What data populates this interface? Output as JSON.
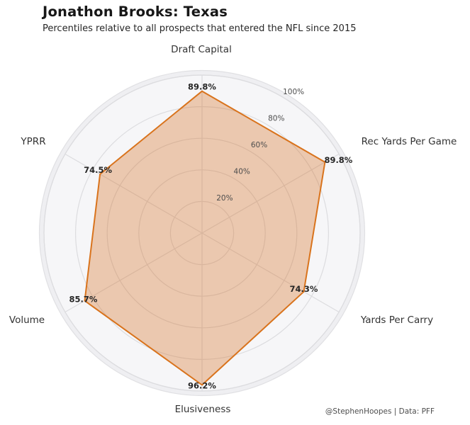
{
  "header": {
    "title": "Jonathon Brooks: Texas",
    "subtitle": "Percentiles relative to all prospects that entered the NFL since 2015"
  },
  "footer": {
    "credit": "@StephenHoopes | Data: PFF"
  },
  "chart_data": {
    "type": "radar",
    "title": "Jonathon Brooks: Texas",
    "subtitle": "Percentiles relative to all prospects that entered the NFL since 2015",
    "categories": [
      "Draft Capital",
      "Rec Yards Per Game",
      "Yards Per Carry",
      "Elusiveness",
      "Volume",
      "YPRR"
    ],
    "values": [
      89.8,
      89.8,
      74.3,
      96.2,
      85.7,
      74.5
    ],
    "value_labels": [
      "89.8%",
      "89.8%",
      "74.3%",
      "96.2%",
      "85.7%",
      "74.5%"
    ],
    "rings": [
      20,
      40,
      60,
      80,
      100
    ],
    "ring_labels": [
      "20%",
      "40%",
      "60%",
      "80%",
      "100%"
    ],
    "rlim": [
      0,
      100
    ],
    "grid": true,
    "legend": "none",
    "colors": {
      "fill": "rgba(211,106,28,0.33)",
      "stroke": "#d9731c",
      "grid": "#dcdcdf",
      "panel_outer": "#efeff2",
      "panel_inner": "#f6f6f8",
      "panel_edge": "#e0e0e3",
      "ring_label": "#4d4d4d",
      "axis_label": "#333333",
      "value_label": "#262626",
      "title": "#171717",
      "subtitle": "#262626",
      "credit": "#4d4d4d"
    }
  }
}
